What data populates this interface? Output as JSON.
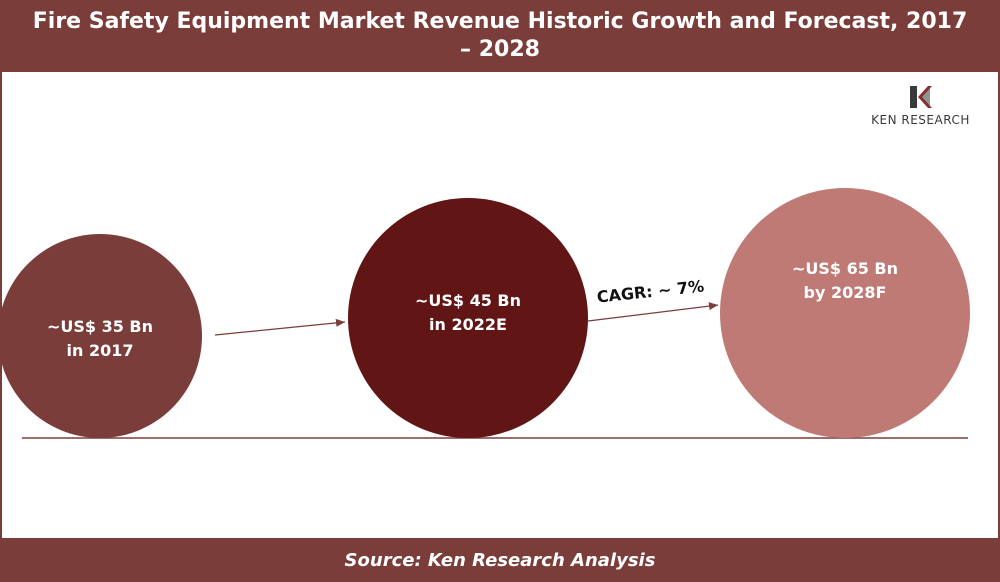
{
  "title": "Fire Safety Equipment Market Revenue Historic Growth and Forecast, 2017 – 2028",
  "source": "Source: Ken Research Analysis",
  "logo": {
    "text": "KEN RESEARCH",
    "icon": "ken-research-k-logo"
  },
  "colors": {
    "header": "#7a3d3a",
    "bubble_2017": "#7a3d3a",
    "bubble_2022": "#611515",
    "bubble_2028": "#bf7a76",
    "baseline": "#7a3d3a"
  },
  "chart_data": {
    "type": "bubble",
    "unit": "US$ Bn",
    "points": [
      {
        "x": "2017",
        "value": 35,
        "label_line1": "~US$ 35 Bn",
        "label_line2": "in 2017"
      },
      {
        "x": "2022E",
        "value": 45,
        "label_line1": "~US$ 45 Bn",
        "label_line2": "in 2022E"
      },
      {
        "x": "2028F",
        "value": 65,
        "label_line1": "~US$ 65 Bn",
        "label_line2": "by 2028F"
      }
    ],
    "annotations": [
      {
        "text": "CAGR: ~ 7%",
        "between": [
          "2022E",
          "2028F"
        ]
      }
    ]
  }
}
